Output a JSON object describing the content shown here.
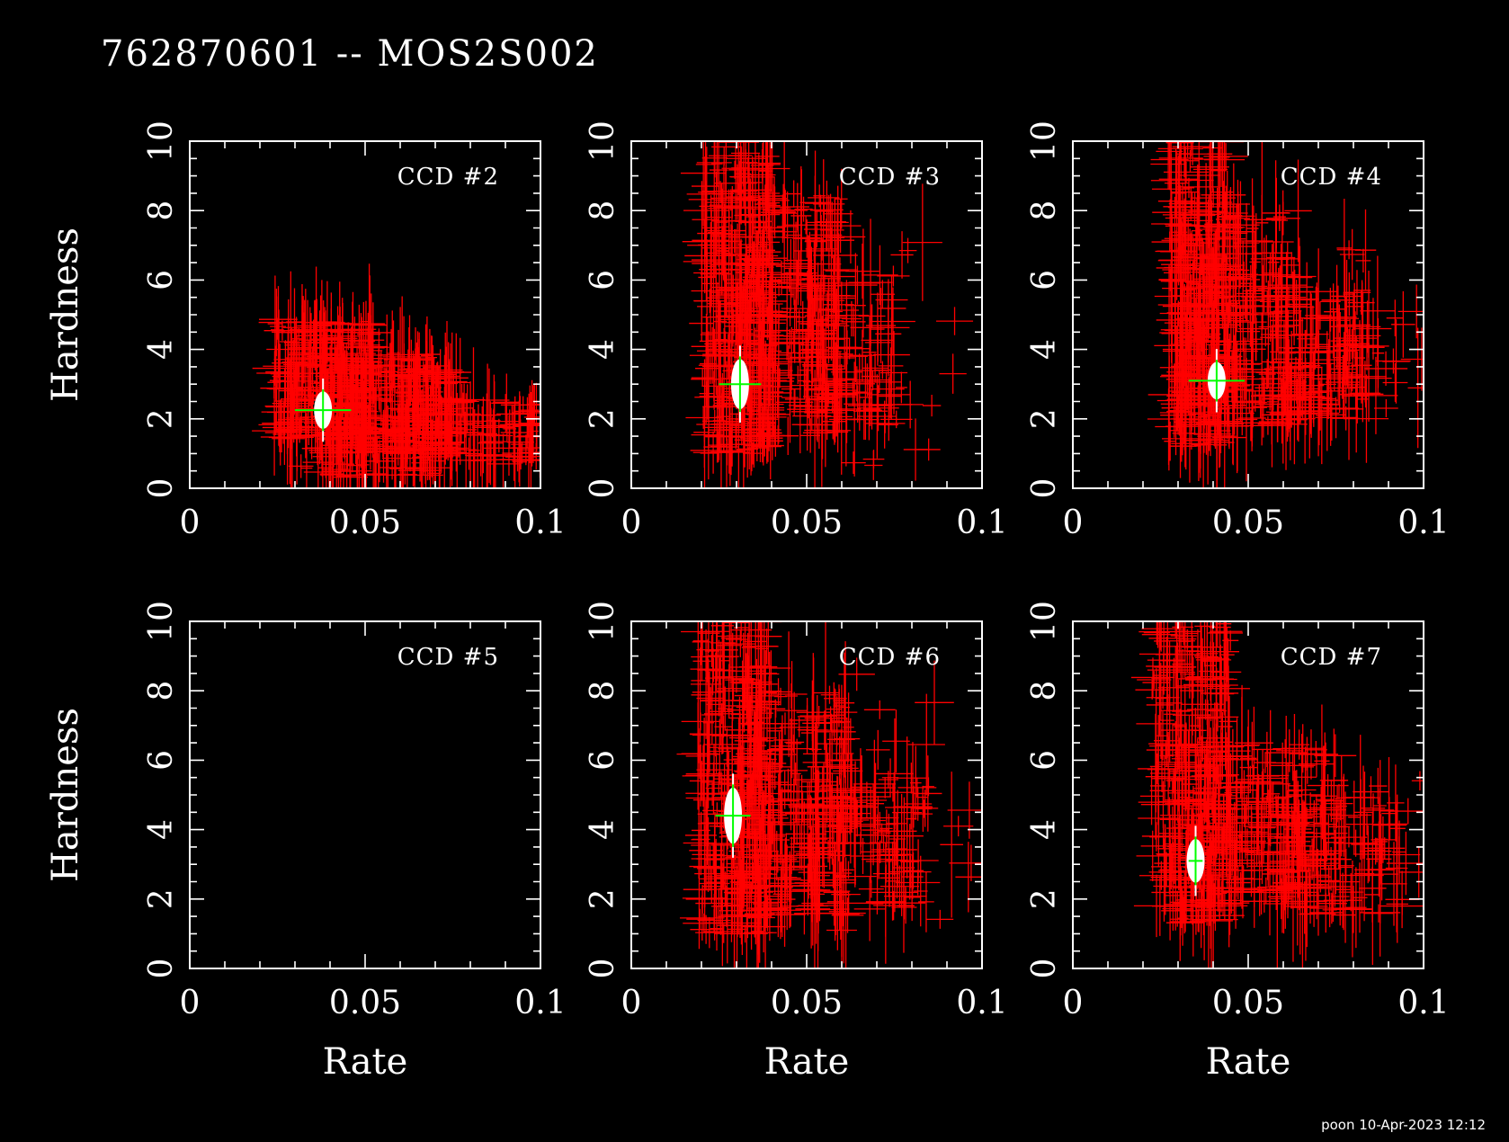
{
  "title": "762870601 -- MOS2S002",
  "footer": "poon 10-Apr-2023 12:12",
  "colors": {
    "background": "#000000",
    "frame": "#ffffff",
    "points": "#ff0000",
    "mean_point": "#ffffff",
    "mean_cross": "#00ff00"
  },
  "chart_data": [
    {
      "type": "scatter",
      "panel": "CCD #2",
      "label": "CCD #2",
      "xlabel": "",
      "ylabel": "Hardness",
      "xlim": [
        0,
        0.1
      ],
      "ylim": [
        0,
        10
      ],
      "xticks": [
        "0",
        "0.05",
        "0.1"
      ],
      "yticks": [
        "0",
        "2",
        "4",
        "6",
        "8",
        "10"
      ],
      "cloud": [
        {
          "x": [
            0.024,
            0.052
          ],
          "y": [
            1.4,
            4.9
          ],
          "n": 260
        },
        {
          "x": [
            0.04,
            0.075
          ],
          "y": [
            1.0,
            3.9
          ],
          "n": 240
        },
        {
          "x": [
            0.06,
            0.1
          ],
          "y": [
            0.7,
            2.6
          ],
          "n": 120
        },
        {
          "x": [
            0.03,
            0.07
          ],
          "y": [
            0.3,
            1.2
          ],
          "n": 40
        }
      ],
      "mean": {
        "x": 0.038,
        "y": 2.25,
        "xerr": 0.008,
        "yerr": 0.6
      },
      "has_data": true
    },
    {
      "type": "scatter",
      "panel": "CCD #3",
      "label": "CCD #3",
      "xlabel": "",
      "ylabel": "",
      "xlim": [
        0,
        0.1
      ],
      "ylim": [
        0,
        10
      ],
      "xticks": [
        "0",
        "0.05",
        "0.1"
      ],
      "yticks": [
        "0",
        "2",
        "4",
        "6",
        "8",
        "10"
      ],
      "cloud": [
        {
          "x": [
            0.02,
            0.04
          ],
          "y": [
            1.0,
            10.0
          ],
          "n": 280
        },
        {
          "x": [
            0.03,
            0.06
          ],
          "y": [
            1.5,
            8.5
          ],
          "n": 260
        },
        {
          "x": [
            0.05,
            0.075
          ],
          "y": [
            1.8,
            6.2
          ],
          "n": 100
        },
        {
          "x": [
            0.06,
            0.095
          ],
          "y": [
            0.5,
            7.5
          ],
          "n": 25
        }
      ],
      "mean": {
        "x": 0.031,
        "y": 3.0,
        "xerr": 0.006,
        "yerr": 0.8
      },
      "has_data": true
    },
    {
      "type": "scatter",
      "panel": "CCD #4",
      "label": "CCD #4",
      "xlabel": "",
      "ylabel": "",
      "xlim": [
        0,
        0.1
      ],
      "ylim": [
        0,
        10
      ],
      "xticks": [
        "0",
        "0.05",
        "0.1"
      ],
      "yticks": [
        "0",
        "2",
        "4",
        "6",
        "8",
        "10"
      ],
      "cloud": [
        {
          "x": [
            0.027,
            0.045
          ],
          "y": [
            1.2,
            10.0
          ],
          "n": 260
        },
        {
          "x": [
            0.03,
            0.065
          ],
          "y": [
            1.8,
            8.0
          ],
          "n": 260
        },
        {
          "x": [
            0.055,
            0.085
          ],
          "y": [
            2.0,
            5.8
          ],
          "n": 120
        },
        {
          "x": [
            0.075,
            0.1
          ],
          "y": [
            2.0,
            7.0
          ],
          "n": 30
        }
      ],
      "mean": {
        "x": 0.041,
        "y": 3.1,
        "xerr": 0.008,
        "yerr": 0.6
      },
      "has_data": true
    },
    {
      "type": "scatter",
      "panel": "CCD #5",
      "label": "CCD #5",
      "xlabel": "Rate",
      "ylabel": "Hardness",
      "xlim": [
        0,
        0.1
      ],
      "ylim": [
        0,
        10
      ],
      "xticks": [
        "0",
        "0.05",
        "0.1"
      ],
      "yticks": [
        "0",
        "2",
        "4",
        "6",
        "8",
        "10"
      ],
      "cloud": [],
      "mean": null,
      "has_data": false
    },
    {
      "type": "scatter",
      "panel": "CCD #6",
      "label": "CCD #6",
      "xlabel": "Rate",
      "ylabel": "",
      "xlim": [
        0,
        0.1
      ],
      "ylim": [
        0,
        10
      ],
      "xticks": [
        "0",
        "0.05",
        "0.1"
      ],
      "yticks": [
        "0",
        "2",
        "4",
        "6",
        "8",
        "10"
      ],
      "cloud": [
        {
          "x": [
            0.019,
            0.04
          ],
          "y": [
            1.0,
            10.0
          ],
          "n": 260
        },
        {
          "x": [
            0.03,
            0.062
          ],
          "y": [
            1.5,
            8.0
          ],
          "n": 260
        },
        {
          "x": [
            0.05,
            0.085
          ],
          "y": [
            1.8,
            5.5
          ],
          "n": 110
        },
        {
          "x": [
            0.06,
            0.1
          ],
          "y": [
            1.0,
            9.0
          ],
          "n": 25
        }
      ],
      "mean": {
        "x": 0.029,
        "y": 4.4,
        "xerr": 0.005,
        "yerr": 0.9
      },
      "has_data": true
    },
    {
      "type": "scatter",
      "panel": "CCD #7",
      "label": "CCD #7",
      "xlabel": "Rate",
      "ylabel": "",
      "xlim": [
        0,
        0.1
      ],
      "ylim": [
        0,
        10
      ],
      "xticks": [
        "0",
        "0.05",
        "0.1"
      ],
      "yticks": [
        "0",
        "2",
        "4",
        "6",
        "8",
        "10"
      ],
      "cloud": [
        {
          "x": [
            0.022,
            0.045
          ],
          "y": [
            1.3,
            10.0
          ],
          "n": 260
        },
        {
          "x": [
            0.03,
            0.075
          ],
          "y": [
            1.8,
            6.5
          ],
          "n": 260
        },
        {
          "x": [
            0.06,
            0.095
          ],
          "y": [
            1.5,
            5.0
          ],
          "n": 90
        },
        {
          "x": [
            0.08,
            0.1
          ],
          "y": [
            1.5,
            5.5
          ],
          "n": 20
        }
      ],
      "mean": {
        "x": 0.035,
        "y": 3.1,
        "xerr": 0.002,
        "yerr": 0.7
      },
      "has_data": true
    }
  ]
}
